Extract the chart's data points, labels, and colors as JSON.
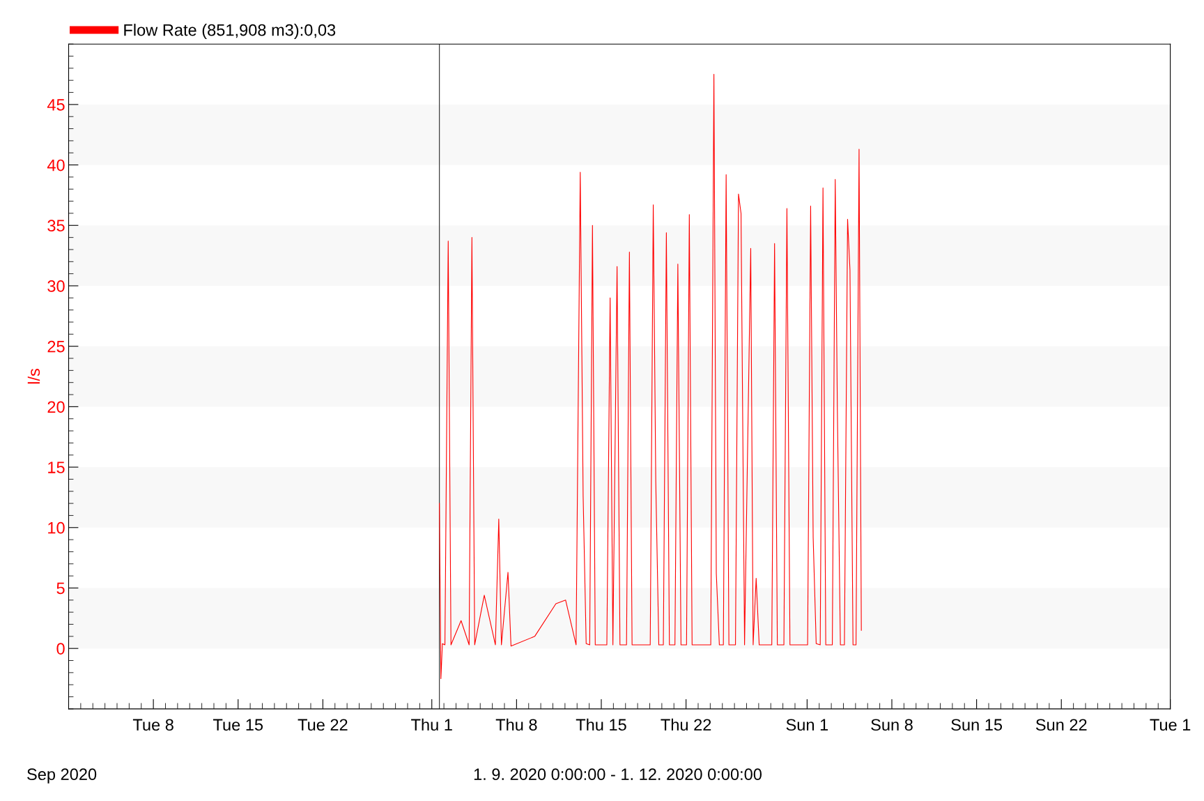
{
  "chart_data": {
    "type": "line",
    "ylabel": "l/s",
    "legend": "top left",
    "grid": false,
    "marker": "none",
    "line_style": "solid",
    "xlim": [
      "2020-09-01",
      "2020-12-01"
    ],
    "xticks": [
      {
        "value": "2020-09-08",
        "label": "Tue 8"
      },
      {
        "value": "2020-09-15",
        "label": "Tue 15"
      },
      {
        "value": "2020-09-22",
        "label": "Tue 22"
      },
      {
        "value": "2020-10-01",
        "label": "Thu 1"
      },
      {
        "value": "2020-10-08",
        "label": "Thu 8"
      },
      {
        "value": "2020-10-15",
        "label": "Thu 15"
      },
      {
        "value": "2020-10-22",
        "label": "Thu 22"
      },
      {
        "value": "2020-11-01",
        "label": "Sun 1"
      },
      {
        "value": "2020-11-08",
        "label": "Sun 8"
      },
      {
        "value": "2020-11-15",
        "label": "Sun 15"
      },
      {
        "value": "2020-11-22",
        "label": "Sun 22"
      },
      {
        "value": "2020-12-01",
        "label": "Tue 1"
      }
    ],
    "ylim": [
      -5,
      50
    ],
    "yticks": [
      0,
      5,
      10,
      15,
      20,
      25,
      30,
      35,
      40,
      45
    ],
    "bands": [
      {
        "axis": "y",
        "from": 0,
        "to": 5,
        "color": "#f8f8f8"
      },
      {
        "axis": "y",
        "from": 10,
        "to": 15,
        "color": "#f8f8f8"
      },
      {
        "axis": "y",
        "from": 20,
        "to": 25,
        "color": "#f8f8f8"
      },
      {
        "axis": "y",
        "from": 30,
        "to": 35,
        "color": "#f8f8f8"
      },
      {
        "axis": "y",
        "from": 40,
        "to": 45,
        "color": "#f8f8f8"
      }
    ],
    "ref_lines": [
      {
        "axis": "x",
        "value": "2020-10-01T15:00",
        "color": "#404040"
      }
    ],
    "annotations": [
      "Sep 2020",
      "1. 9. 2020 0:00:00 - 1. 12. 2020 0:00:00"
    ],
    "series": [
      {
        "name": "Flow Rate (851,908 m3):0,03",
        "color": "#ff0000",
        "x": [
          "2020-10-01T15:00",
          "2020-10-01T18:00",
          "2020-10-01T21:00",
          "2020-10-02T02:00",
          "2020-10-02T08:30",
          "2020-10-02T14:00",
          "2020-10-03T10:00",
          "2020-10-04T02:00",
          "2020-10-04T07:30",
          "2020-10-04T13:00",
          "2020-10-05T08:00",
          "2020-10-06T06:00",
          "2020-10-06T12:45",
          "2020-10-06T18:00",
          "2020-10-07T07:00",
          "2020-10-07T13:00",
          "2020-10-09T12:00",
          "2020-10-11T06:00",
          "2020-10-12T01:15",
          "2020-10-12T22:00",
          "2020-10-13T06:15",
          "2020-10-13T12:00",
          "2020-10-13T18:00",
          "2020-10-14T01:00",
          "2020-10-14T06:30",
          "2020-10-14T12:00",
          "2020-10-15T11:00",
          "2020-10-15T17:30",
          "2020-10-15T23:00",
          "2020-10-16T07:15",
          "2020-10-16T13:00",
          "2020-10-17T02:00",
          "2020-10-17T07:45",
          "2020-10-17T13:00",
          "2020-10-19T01:00",
          "2020-10-19T07:00",
          "2020-10-19T12:00",
          "2020-10-19T18:00",
          "2020-10-20T03:00",
          "2020-10-20T09:00",
          "2020-10-20T15:00",
          "2020-10-21T02:00",
          "2020-10-21T07:45",
          "2020-10-21T14:00",
          "2020-10-22T01:00",
          "2020-10-22T06:30",
          "2020-10-22T12:00",
          "2020-10-24T01:00",
          "2020-10-24T07:15",
          "2020-10-24T12:00",
          "2020-10-24T18:00",
          "2020-10-25T02:00",
          "2020-10-25T07:30",
          "2020-10-25T13:00",
          "2020-10-26T02:00",
          "2020-10-26T08:00",
          "2020-10-26T13:00",
          "2020-10-26T20:00",
          "2020-10-27T08:15",
          "2020-10-27T13:00",
          "2020-10-27T19:00",
          "2020-10-28T01:00",
          "2020-10-29T02:00",
          "2020-10-29T07:30",
          "2020-10-29T13:00",
          "2020-10-30T02:00",
          "2020-10-30T08:00",
          "2020-10-30T14:00",
          "2020-11-01T01:00",
          "2020-11-01T07:00",
          "2020-11-01T12:00",
          "2020-11-01T18:00",
          "2020-11-02T02:00",
          "2020-11-02T07:30",
          "2020-11-02T13:00",
          "2020-11-03T02:00",
          "2020-11-03T07:45",
          "2020-11-03T12:00",
          "2020-11-03T18:00",
          "2020-11-04T02:00",
          "2020-11-04T08:15",
          "2020-11-04T13:00",
          "2020-11-04T19:00",
          "2020-11-05T01:00",
          "2020-11-05T07:00",
          "2020-11-05T11:30"
        ],
        "values": [
          12.0,
          -2.5,
          0.4,
          0.3,
          33.7,
          0.3,
          2.3,
          0.3,
          34.0,
          0.3,
          4.4,
          0.3,
          10.7,
          0.3,
          6.3,
          0.2,
          1.0,
          3.7,
          4.0,
          0.3,
          39.4,
          12.6,
          0.4,
          0.3,
          35.0,
          0.3,
          0.3,
          29.0,
          0.3,
          31.6,
          0.3,
          0.3,
          32.8,
          0.3,
          0.3,
          36.7,
          13.8,
          0.3,
          0.3,
          34.4,
          0.3,
          0.3,
          31.8,
          0.3,
          0.3,
          35.9,
          0.3,
          0.3,
          47.5,
          6.2,
          0.3,
          0.3,
          39.2,
          0.3,
          0.3,
          37.6,
          36.0,
          0.3,
          33.1,
          0.3,
          5.8,
          0.3,
          0.3,
          33.5,
          0.3,
          0.3,
          36.4,
          0.3,
          0.3,
          36.6,
          9.2,
          0.4,
          0.3,
          38.1,
          0.3,
          0.3,
          38.8,
          19.7,
          0.3,
          0.3,
          35.5,
          31.3,
          0.3,
          0.3,
          41.3,
          1.5
        ]
      }
    ]
  }
}
